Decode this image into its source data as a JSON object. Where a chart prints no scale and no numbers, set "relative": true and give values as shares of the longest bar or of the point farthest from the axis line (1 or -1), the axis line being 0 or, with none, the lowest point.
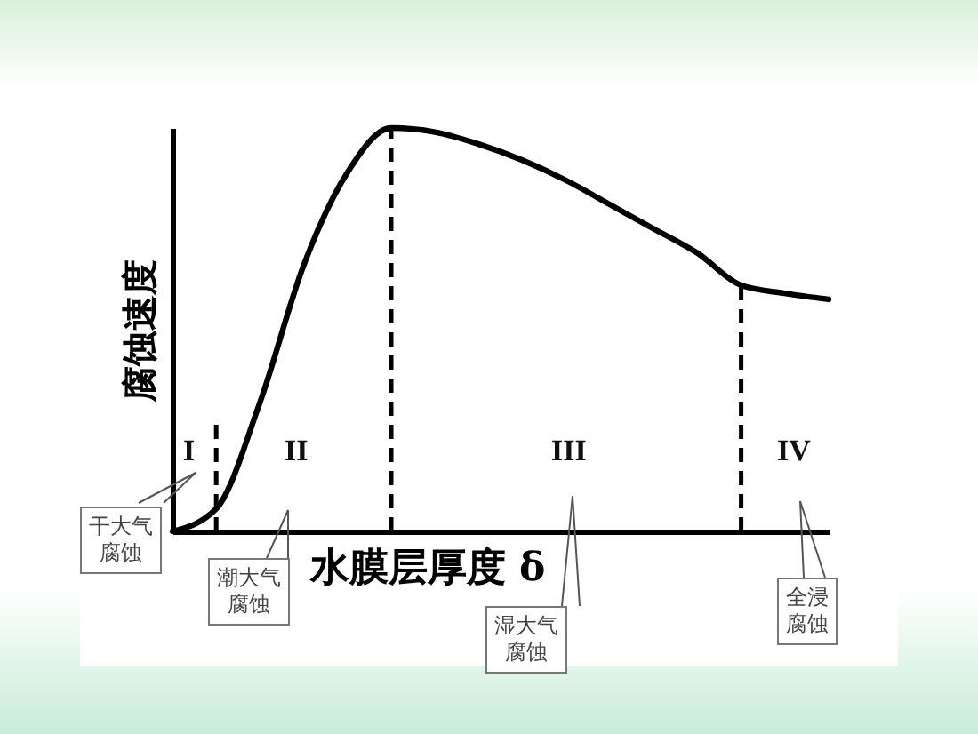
{
  "chart_data": {
    "type": "line",
    "relative": true,
    "xlabel": "水膜层厚度 δ",
    "ylabel": "腐蚀速度",
    "categories": [
      null,
      null,
      null,
      null,
      null,
      null,
      null,
      null,
      null,
      null,
      null,
      null,
      null,
      null,
      null,
      null
    ],
    "series": [
      {
        "color": "#000000",
        "values": [
          0,
          0.056,
          0.32,
          0.66,
          0.89,
          1,
          0.99,
          0.96,
          0.92,
          0.87,
          0.81,
          0.75,
          0.69,
          0.61,
          0.59,
          0.575
        ]
      }
    ],
    "annotations": [
      "I",
      "II",
      "III",
      "IV",
      "干大气腐蚀",
      "潮大气腐蚀",
      "湿大气腐蚀",
      "全浸腐蚀"
    ],
    "tick_labels": false,
    "grid": false,
    "legend": false,
    "marker": "none",
    "line_style": "solid"
  }
}
